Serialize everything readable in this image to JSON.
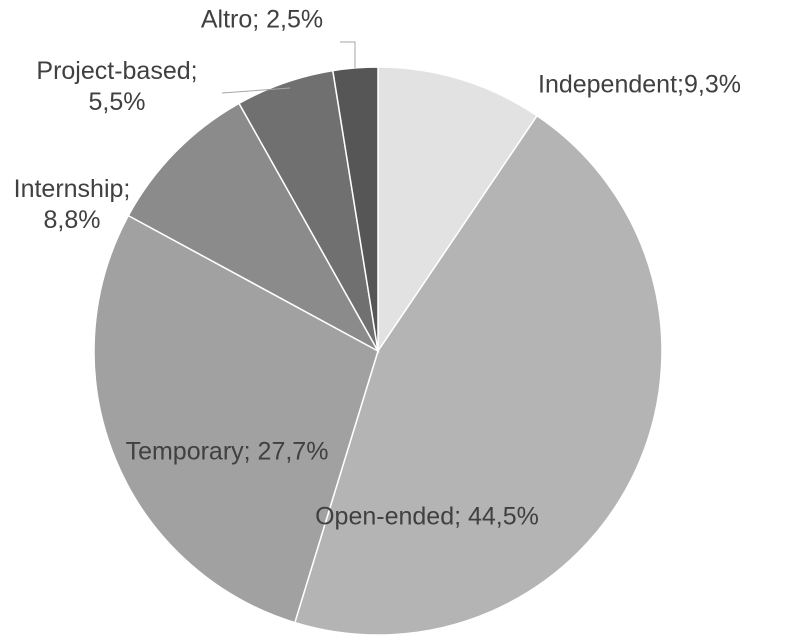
{
  "chart_data": {
    "type": "pie",
    "categories": [
      "Independent",
      "Open-ended",
      "Temporary",
      "Internship",
      "Project-based",
      "Altro"
    ],
    "values": [
      9.3,
      44.5,
      27.7,
      8.8,
      5.5,
      2.5
    ],
    "value_labels": [
      "Independent;9,3%",
      "Open-ended; 44,5%",
      "Temporary; 27,7%",
      "Internship;\n8,8%",
      "Project-based;\n5,5%",
      "Altro; 2,5%"
    ],
    "colors": [
      "#e2e2e2",
      "#b4b4b4",
      "#a1a1a1",
      "#8b8b8b",
      "#707070",
      "#565656"
    ]
  }
}
